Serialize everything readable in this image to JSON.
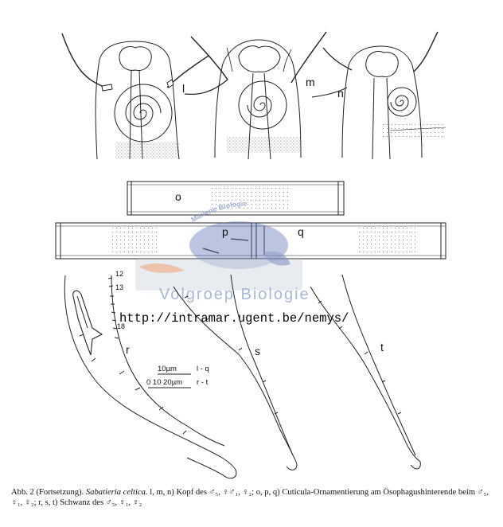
{
  "figure": {
    "panel_labels": {
      "l": "l",
      "m": "m",
      "n": "n",
      "o": "o",
      "p": "p",
      "q": "q",
      "r": "r",
      "s": "s",
      "t": "t"
    },
    "tick_labels": [
      "12",
      "13",
      "18"
    ],
    "scale_bars": {
      "top_value": "10µm",
      "top_range": "l - q",
      "bottom_value": "0  10 20µm",
      "bottom_range": "r - t"
    }
  },
  "watermark": {
    "arc_text": "Mariene Biologie",
    "main_text": "Volgroep Biologie",
    "url": "http://intramar.ugent.be/nemys/",
    "colors": {
      "blue": "#5b73b5",
      "orange": "#e9a27a",
      "grey": "#c8cdd8"
    }
  },
  "caption": {
    "prefix": "Abb. 2 (Fortsetzung).",
    "species": "Sabatieria celtica.",
    "text": "l, m, n) Kopf des ♂₅, ♀♂₁, ♀₂; o, p, q) Cuticula-Ornamentierung am Ösophagushinterende beim ♂₅, ♀₁, ♀₂; r, s, t) Schwanz des ♂₅, ♀₁, ♀₂"
  }
}
